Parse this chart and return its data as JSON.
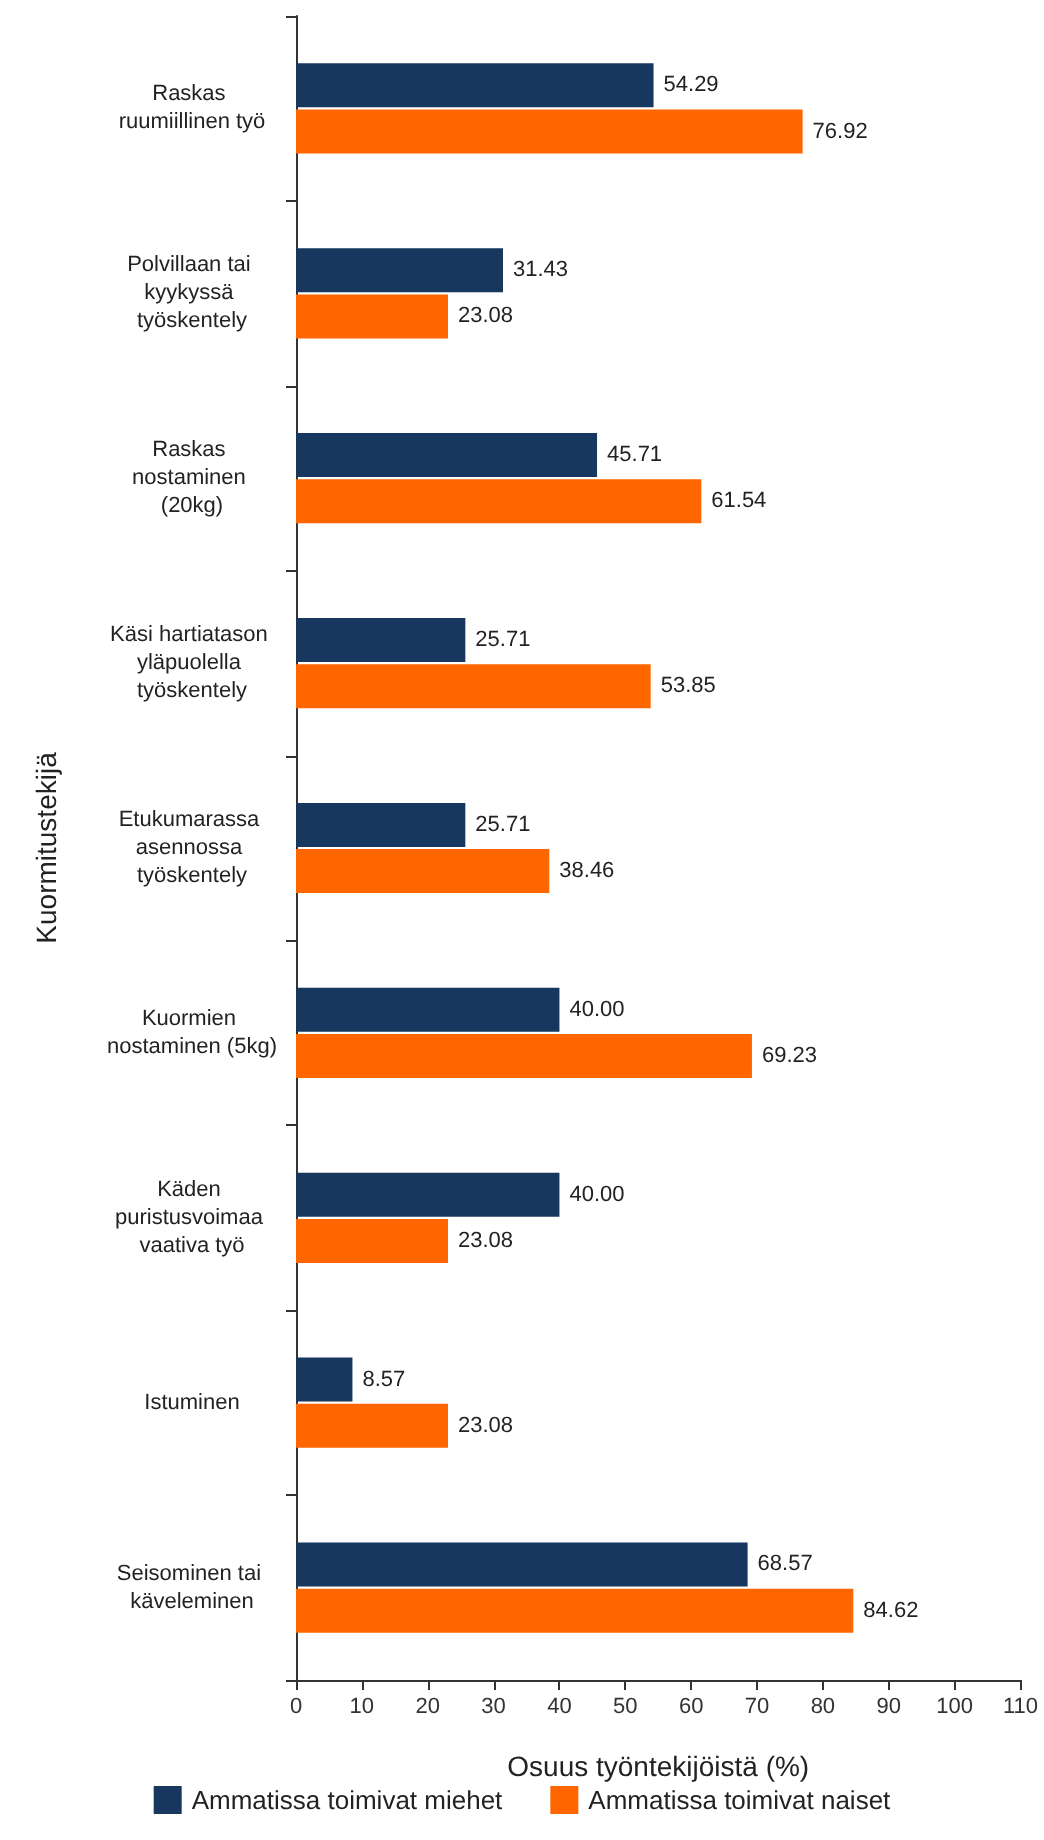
{
  "chart_data": {
    "type": "bar",
    "orientation": "horizontal",
    "xlabel": "Osuus työntekijöistä (%)",
    "ylabel": "Kuormitustekijä",
    "categories": [
      "Raskas ruumiillinen työ",
      "Polvillaan tai kyykyssä työskentely",
      "Raskas nostaminen (20kg)",
      "Käsi hartiatason yläpuolella työskentely",
      "Etukumarassa asennossa työskentely",
      "Kuormien nostaminen (5kg)",
      "Käden puristusvoimaa vaativa työ",
      "Istuminen",
      "Seisominen tai käveleminen"
    ],
    "series": [
      {
        "name": "Ammatissa toimivat miehet",
        "color": "#17375e",
        "values": [
          54.29,
          31.43,
          45.71,
          25.71,
          25.71,
          40.0,
          40.0,
          8.57,
          68.57
        ],
        "value_labels": [
          "54.29",
          "31.43",
          "45.71",
          "25.71",
          "25.71",
          "40.00",
          "40.00",
          "8.57",
          "68.57"
        ]
      },
      {
        "name": "Ammatissa toimivat naiset",
        "color": "#ff6600",
        "values": [
          76.92,
          23.08,
          61.54,
          53.85,
          38.46,
          69.23,
          23.08,
          23.08,
          84.62
        ],
        "value_labels": [
          "76.92",
          "23.08",
          "61.54",
          "53.85",
          "38.46",
          "69.23",
          "23.08",
          "23.08",
          "84.62"
        ]
      }
    ],
    "xlim": [
      0,
      110
    ],
    "xticks": [
      0,
      10,
      20,
      30,
      40,
      50,
      60,
      70,
      80,
      90,
      100,
      110
    ],
    "grid": false,
    "legend": "bottom"
  }
}
